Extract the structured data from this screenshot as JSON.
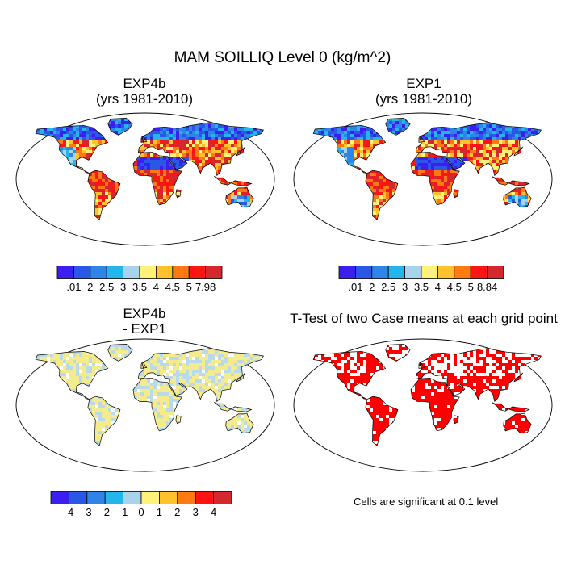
{
  "figure": {
    "title": "MAM SOILLIQ Level 0 (kg/m^2)"
  },
  "panels": [
    {
      "id": "exp4b",
      "title": [
        "EXP4b",
        "(yrs 1981-2010)"
      ],
      "type": "field"
    },
    {
      "id": "exp1",
      "title": [
        "EXP1",
        "(yrs 1981-2010)"
      ],
      "type": "field"
    },
    {
      "id": "diff",
      "title": [
        "EXP4b",
        " - EXP1"
      ],
      "type": "difference"
    },
    {
      "id": "ttest",
      "title": [
        "T-Test of two Case means at each grid point"
      ],
      "type": "significance"
    }
  ],
  "colorbars": {
    "exp4b": {
      "labels": [
        ".01",
        "2",
        "2.5",
        "3",
        "3.5",
        "4",
        "4.5",
        "5",
        "7.98"
      ],
      "colors": [
        "#3a1ff0",
        "#2b57e6",
        "#2f84e8",
        "#24b6ea",
        "#a9d3ea",
        "#fff27a",
        "#ffc22c",
        "#ff7a10",
        "#ff1414",
        "#d4272e"
      ]
    },
    "exp1": {
      "labels": [
        ".01",
        "2",
        "2.5",
        "3",
        "3.5",
        "4",
        "4.5",
        "5",
        "8.84"
      ],
      "colors": [
        "#3a1ff0",
        "#2b57e6",
        "#2f84e8",
        "#24b6ea",
        "#a9d3ea",
        "#fff27a",
        "#ffc22c",
        "#ff7a10",
        "#ff1414",
        "#d4272e"
      ]
    },
    "diff": {
      "labels": [
        "-4",
        "-3",
        "-2",
        "-1",
        "0",
        "1",
        "2",
        "3",
        "4"
      ],
      "colors": [
        "#3a1ff0",
        "#2b57e6",
        "#2f84e8",
        "#24b6ea",
        "#a9d3ea",
        "#fff27a",
        "#ffc22c",
        "#ff7a10",
        "#ff1414",
        "#d4272e"
      ]
    }
  },
  "significance_note": "Cells are significant at 0.1 level",
  "colors": {
    "significant": "#ff0000",
    "diff_land": "#f4ec8c",
    "diff_land_alt": "#b9d9ec"
  }
}
